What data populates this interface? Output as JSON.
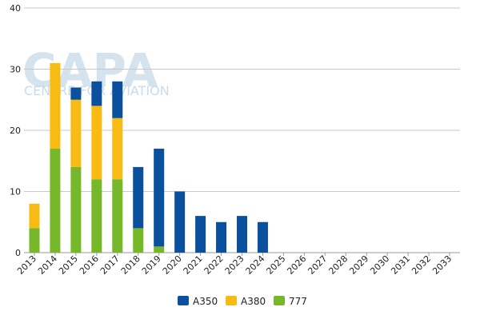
{
  "watermark": {
    "logo": "CAPA",
    "tagline": "CENTRE FOR AVIATION"
  },
  "chart_data": {
    "type": "bar",
    "stacked": true,
    "categories": [
      "2013",
      "2014",
      "2015",
      "2016",
      "2017",
      "2018",
      "2019",
      "2020",
      "2021",
      "2022",
      "2023",
      "2024",
      "2025",
      "2026",
      "2027",
      "2028",
      "2029",
      "2030",
      "2031",
      "2032",
      "2033"
    ],
    "series": [
      {
        "name": "777",
        "color": "#77b82a",
        "values": [
          4,
          17,
          14,
          12,
          12,
          4,
          1,
          0,
          0,
          0,
          0,
          0,
          0,
          0,
          0,
          0,
          0,
          0,
          0,
          0,
          0
        ]
      },
      {
        "name": "A380",
        "color": "#f7bb13",
        "values": [
          4,
          14,
          11,
          12,
          10,
          0,
          0,
          0,
          0,
          0,
          0,
          0,
          0,
          0,
          0,
          0,
          0,
          0,
          0,
          0,
          0
        ]
      },
      {
        "name": "A350",
        "color": "#0a509c",
        "values": [
          0,
          0,
          2,
          4,
          6,
          10,
          16,
          10,
          6,
          5,
          6,
          5,
          0,
          0,
          0,
          0,
          0,
          0,
          0,
          0,
          0
        ]
      }
    ],
    "legend_order": [
      "A350",
      "A380",
      "777"
    ],
    "ylim": [
      0,
      40
    ],
    "yticks": [
      0,
      10,
      20,
      30,
      40
    ],
    "grid": true,
    "legend_position": "bottom-center",
    "title": "",
    "xlabel": "",
    "ylabel": ""
  }
}
